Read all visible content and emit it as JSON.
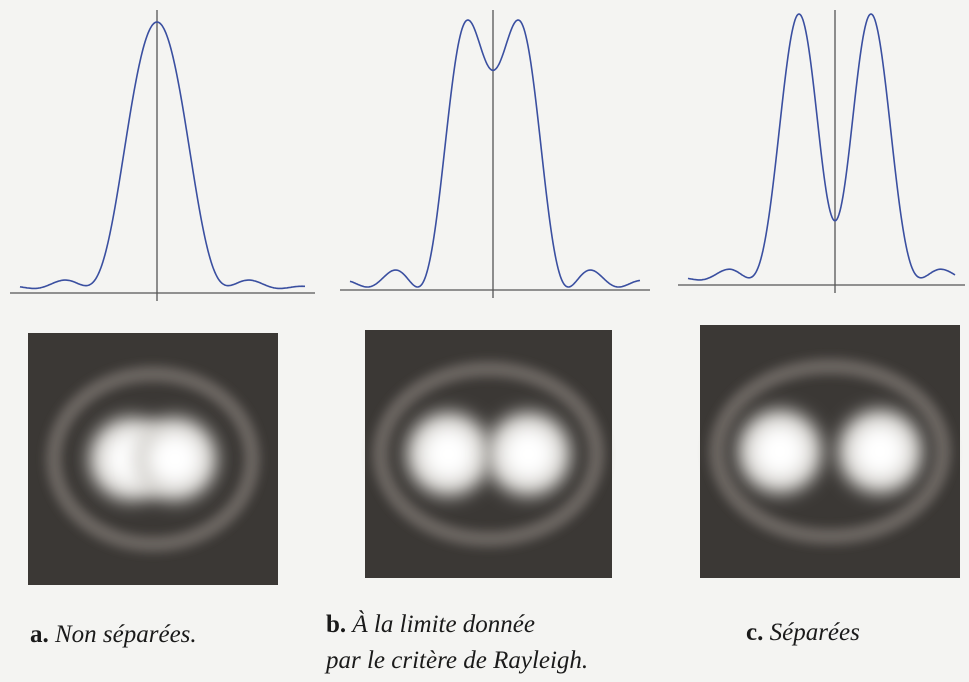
{
  "panels": [
    {
      "letter": "a.",
      "caption": [
        "Non séparées."
      ]
    },
    {
      "letter": "b.",
      "caption": [
        "À la limite donnée",
        "par le critère de Rayleigh."
      ]
    },
    {
      "letter": "c.",
      "caption": [
        "Séparées"
      ]
    }
  ]
}
